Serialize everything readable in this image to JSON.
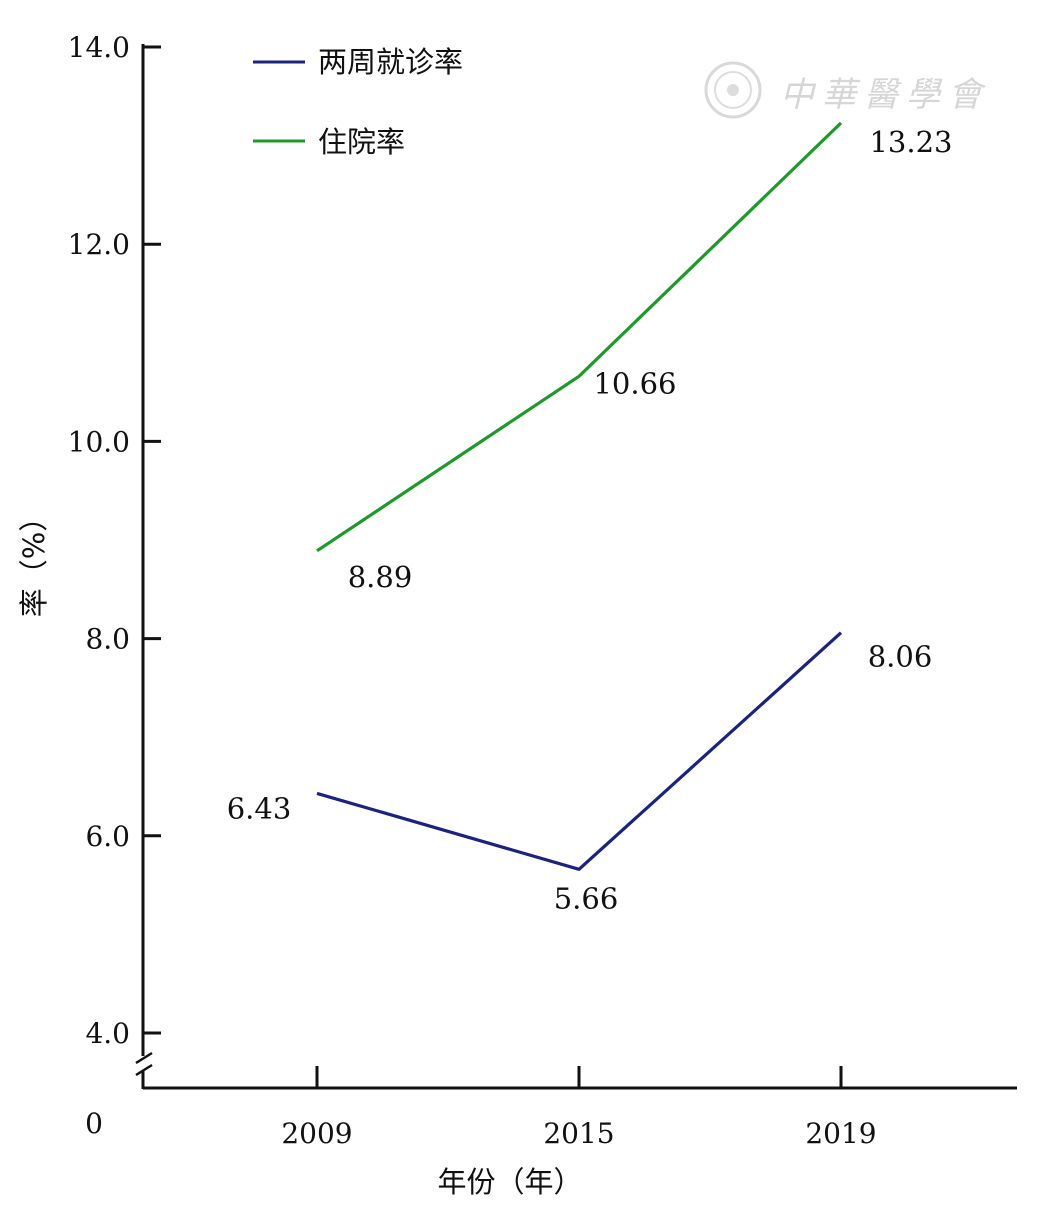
{
  "chart_data": {
    "type": "line",
    "title": "",
    "xlabel": "年份（年）",
    "ylabel": "率（%）",
    "categories": [
      "2009",
      "2015",
      "2019"
    ],
    "y_ticks": [
      "4.0",
      "6.0",
      "8.0",
      "10.0",
      "12.0",
      "14.0"
    ],
    "y_origin_label": "0",
    "ylim": [
      4.0,
      14.0
    ],
    "axis_break": true,
    "grid": false,
    "legend_position": "top-left",
    "series": [
      {
        "name": "两周就诊率",
        "color": "#1a237e",
        "values": [
          6.43,
          5.66,
          8.06
        ],
        "labels": [
          "6.43",
          "5.66",
          "8.06"
        ]
      },
      {
        "name": "住院率",
        "color": "#1e9a2a",
        "values": [
          8.89,
          10.66,
          13.23
        ],
        "labels": [
          "8.89",
          "10.66",
          "13.23"
        ]
      }
    ]
  },
  "watermark": {
    "text": "中華醫學會",
    "icon": "seal-icon"
  }
}
